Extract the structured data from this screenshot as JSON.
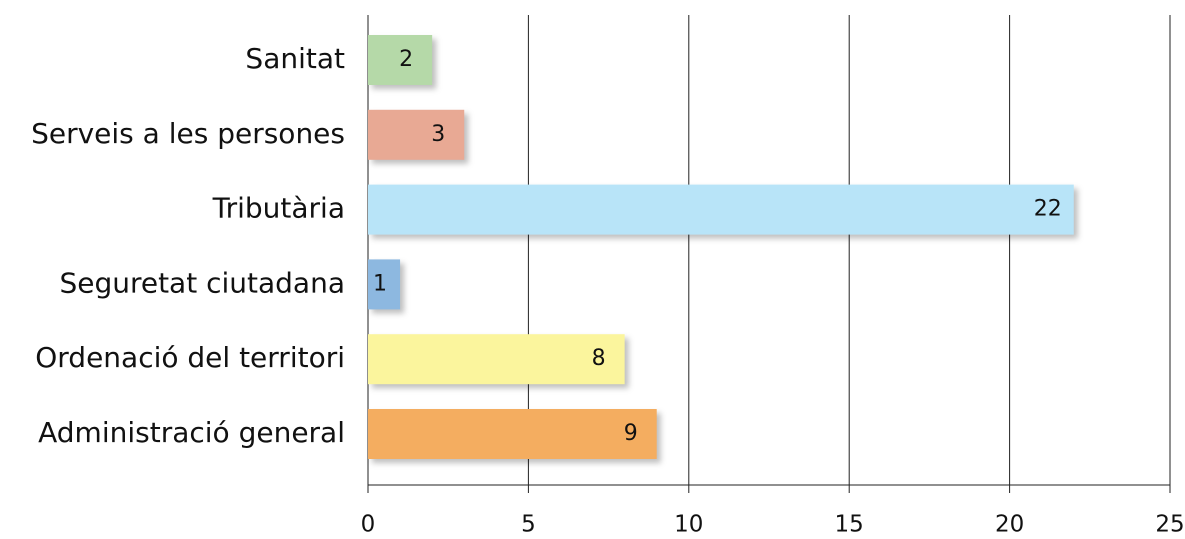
{
  "chart_data": {
    "type": "bar",
    "orientation": "horizontal",
    "categories": [
      "Sanitat",
      "Serveis a les persones",
      "Tributària",
      "Seguretat ciutadana",
      "Ordenació del territori",
      "Administració general"
    ],
    "values": [
      2,
      3,
      22,
      1,
      8,
      9
    ],
    "colors": [
      "#b5d9a8",
      "#e8a994",
      "#b8e4f8",
      "#8db8e0",
      "#fbf59d",
      "#f4ad60"
    ],
    "xlim": [
      0,
      25
    ],
    "xticks": [
      0,
      5,
      10,
      15,
      20,
      25
    ],
    "grid": true
  }
}
